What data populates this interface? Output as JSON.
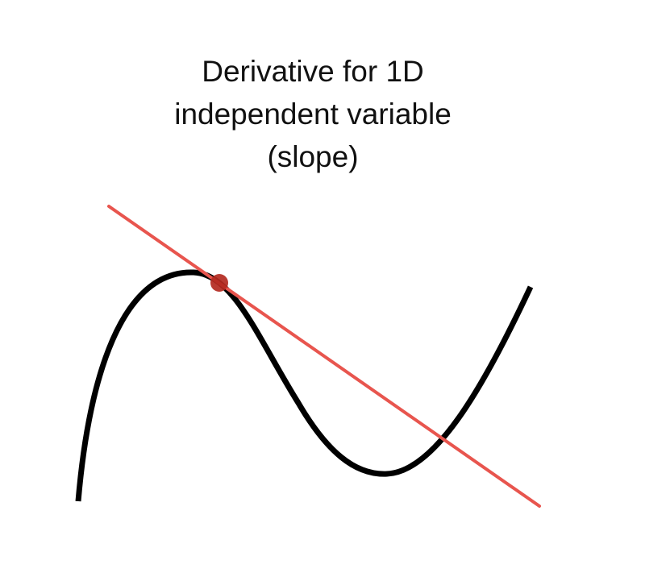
{
  "title": {
    "lines": [
      "Derivative for 1D",
      "independent variable",
      "(slope)"
    ]
  },
  "colors": {
    "curve": "#000000",
    "tangent_line": "#e8554e",
    "point": "#b3291f",
    "text": "#111111",
    "background": "#ffffff"
  }
}
